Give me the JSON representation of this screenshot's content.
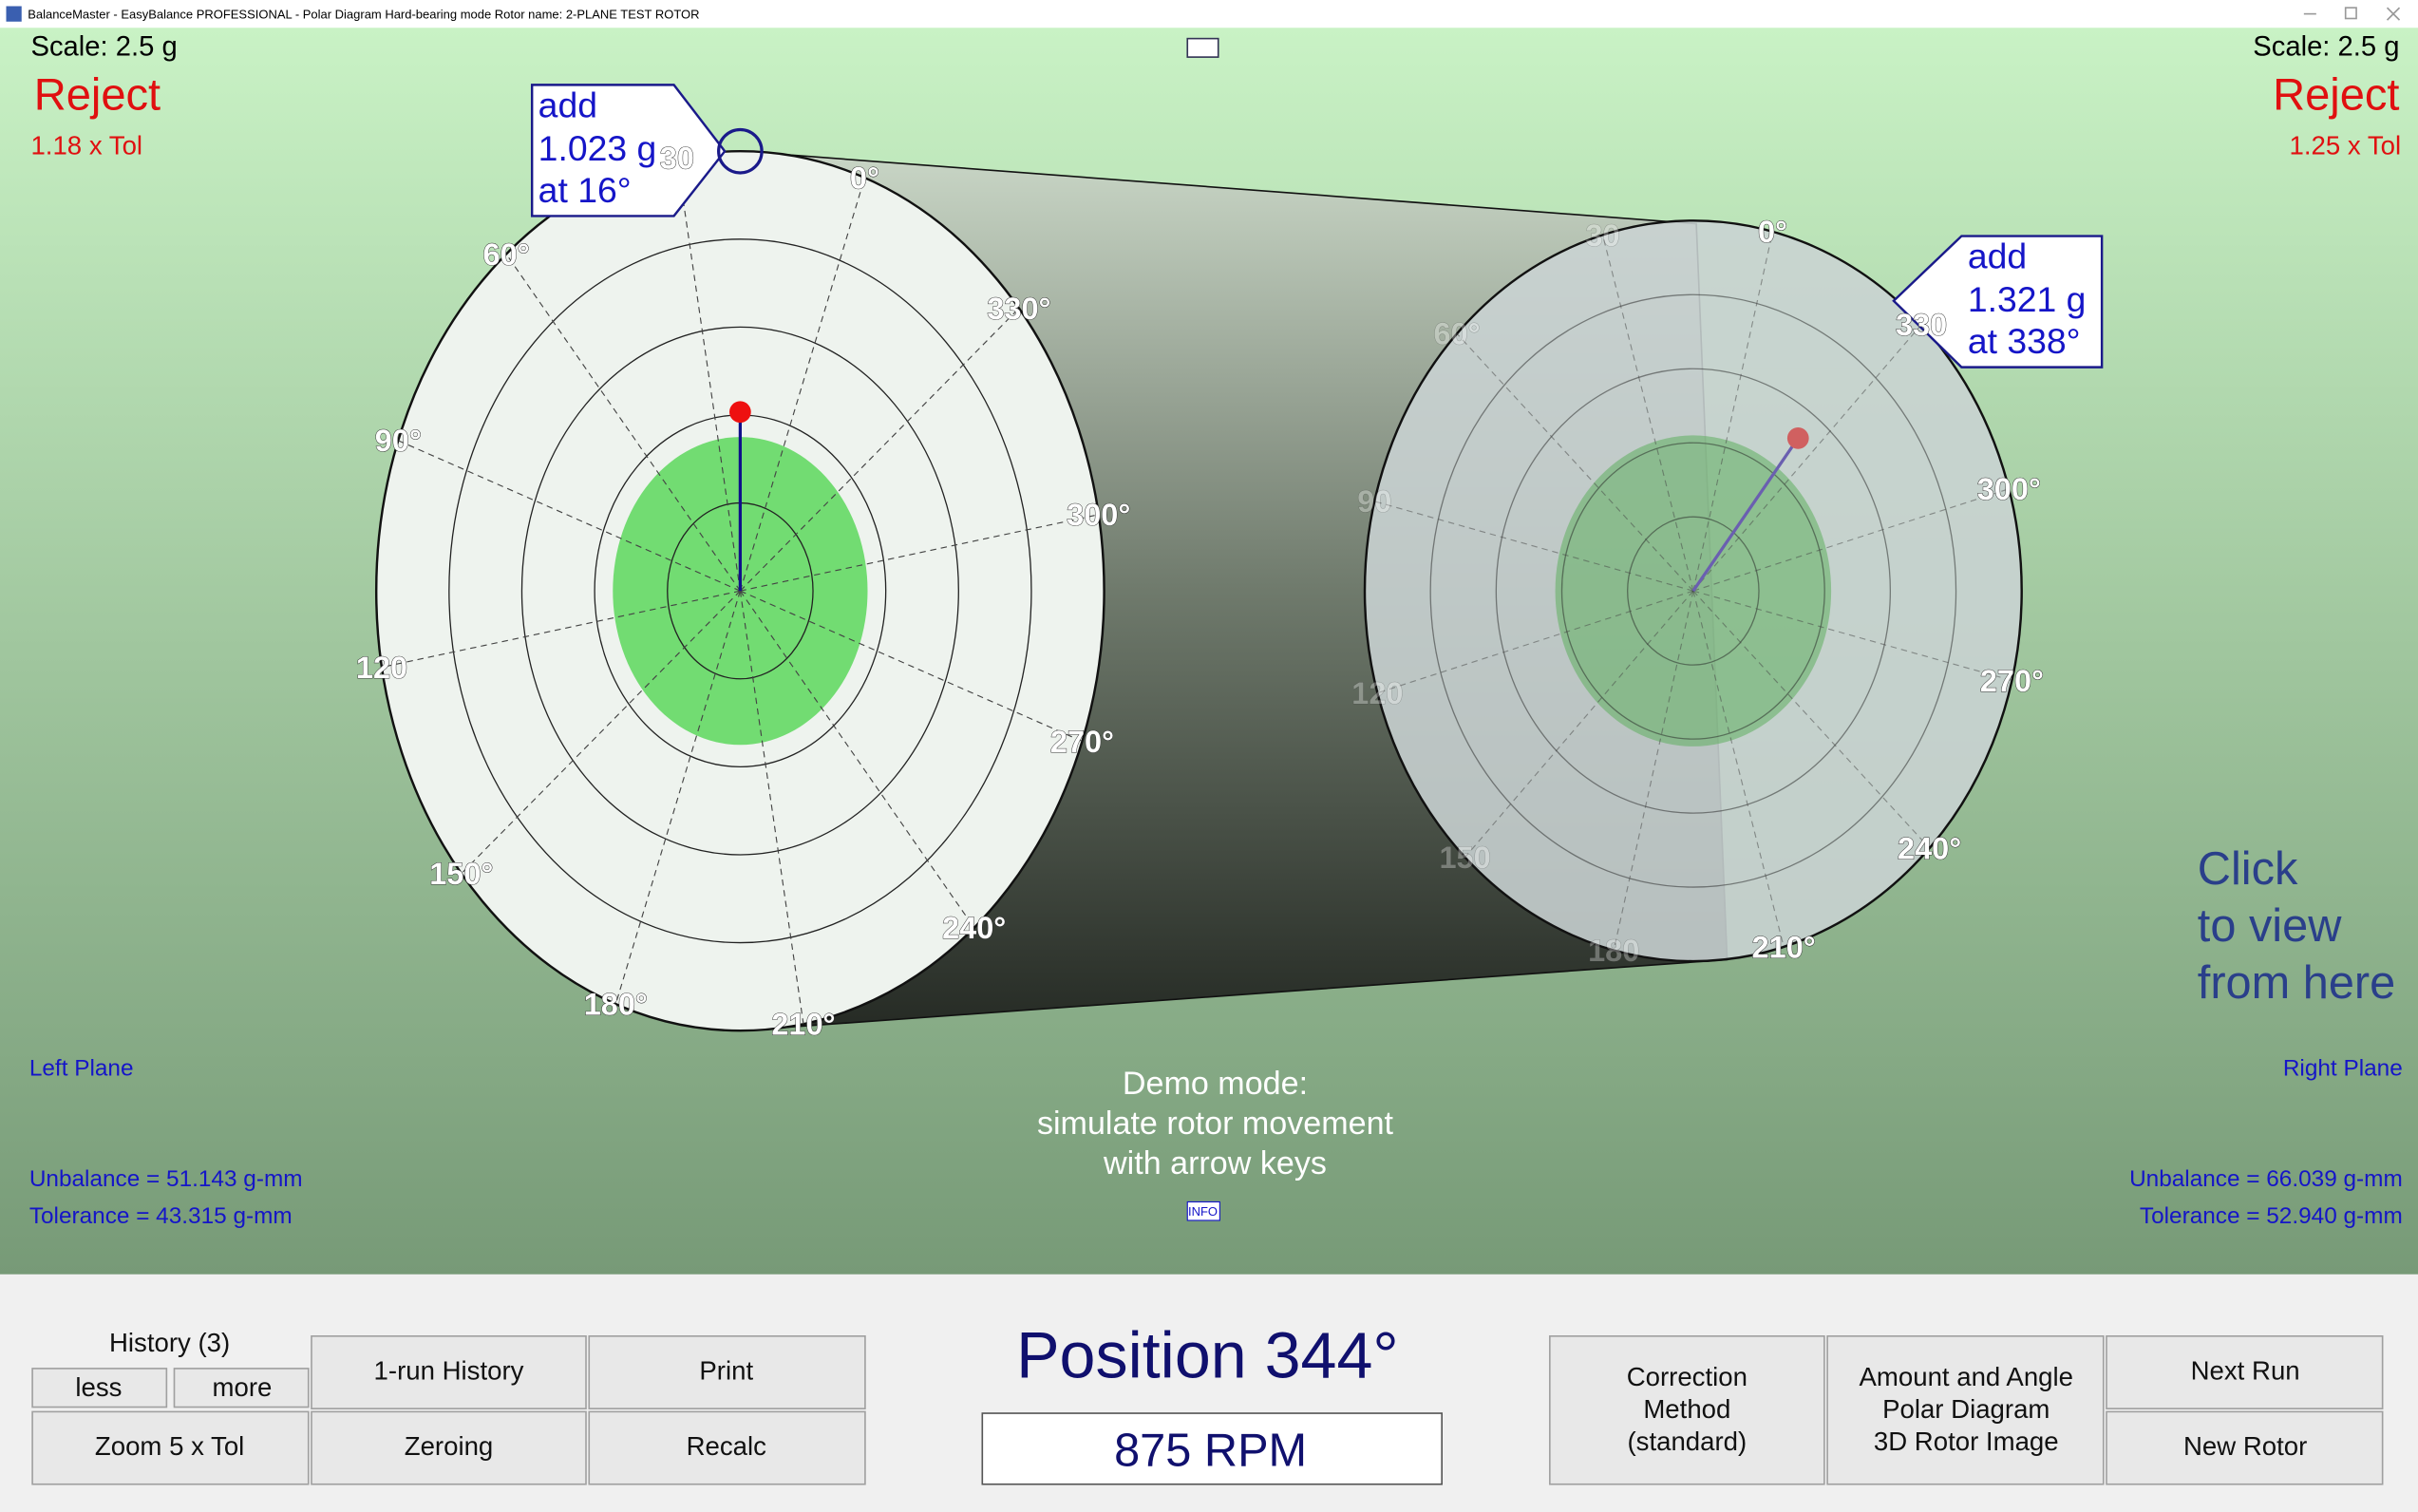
{
  "window": {
    "title": "BalanceMaster - EasyBalance PROFESSIONAL - Polar Diagram    Hard-bearing mode    Rotor name: 2-PLANE TEST ROTOR"
  },
  "left_plane": {
    "scale": "Scale: 2.5 g",
    "status": "Reject",
    "tol_ratio": "1.18 x Tol",
    "callout": [
      "add",
      "1.023 g",
      "at 16°"
    ],
    "name": "Left Plane",
    "unbalance": "Unbalance = 51.143 g-mm",
    "tolerance": "Tolerance = 43.315 g-mm",
    "angle_labels": [
      "0°",
      "330°",
      "300°",
      "270°",
      "240°",
      "210°",
      "180°",
      "150°",
      "120",
      "90°",
      "60°",
      "30"
    ]
  },
  "right_plane": {
    "scale": "Scale: 2.5 g",
    "status": "Reject",
    "tol_ratio": "1.25 x Tol",
    "callout": [
      "add",
      "1.321 g",
      "at 338°"
    ],
    "name": "Right Plane",
    "unbalance": "Unbalance = 66.039 g-mm",
    "tolerance": "Tolerance = 52.940 g-mm",
    "angle_labels": [
      "0°",
      "330",
      "300°",
      "270°",
      "240°",
      "210°",
      "180",
      "150",
      "120",
      "90",
      "60°",
      "30"
    ]
  },
  "demo_note": [
    "Demo mode:",
    "simulate rotor movement",
    "with arrow keys"
  ],
  "info": "INFO",
  "click_note": [
    "Click",
    "to view",
    "from here"
  ],
  "position": "Position 344°",
  "rpm": "875 RPM",
  "buttons": {
    "history": "History (3)",
    "less": "less",
    "more": "more",
    "one_run_history": "1-run History",
    "print": "Print",
    "zoom": "Zoom 5 x Tol",
    "zeroing": "Zeroing",
    "recalc": "Recalc",
    "correction": [
      "Correction",
      "Method",
      "(standard)"
    ],
    "view": [
      "Amount and Angle",
      "Polar Diagram",
      "3D Rotor Image"
    ],
    "next_run": "Next Run",
    "new_rotor": "New Rotor"
  }
}
